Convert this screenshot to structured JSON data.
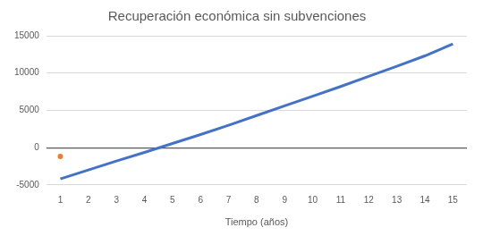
{
  "chart_data": {
    "type": "line",
    "title": "Recuperación económica sin subvenciones",
    "x_label": "Tiempo (años)",
    "categories": [
      1,
      2,
      3,
      4,
      5,
      6,
      7,
      8,
      9,
      10,
      11,
      12,
      13,
      14,
      15
    ],
    "series": [
      {
        "color": "#4472c4",
        "type": "line",
        "values": [
          -4200,
          -3000,
          -1800,
          -650,
          550,
          1750,
          3000,
          4300,
          5600,
          6900,
          8200,
          9550,
          10900,
          12300,
          13900
        ]
      },
      {
        "color": "#ed7d31",
        "type": "scatter",
        "values": [
          -1200,
          null,
          null,
          null,
          null,
          null,
          null,
          null,
          null,
          null,
          null,
          null,
          null,
          null,
          null
        ]
      }
    ],
    "ylim": [
      -5000,
      15000
    ],
    "yticks": [
      -5000,
      0,
      5000,
      10000,
      15000
    ],
    "grid": true
  }
}
